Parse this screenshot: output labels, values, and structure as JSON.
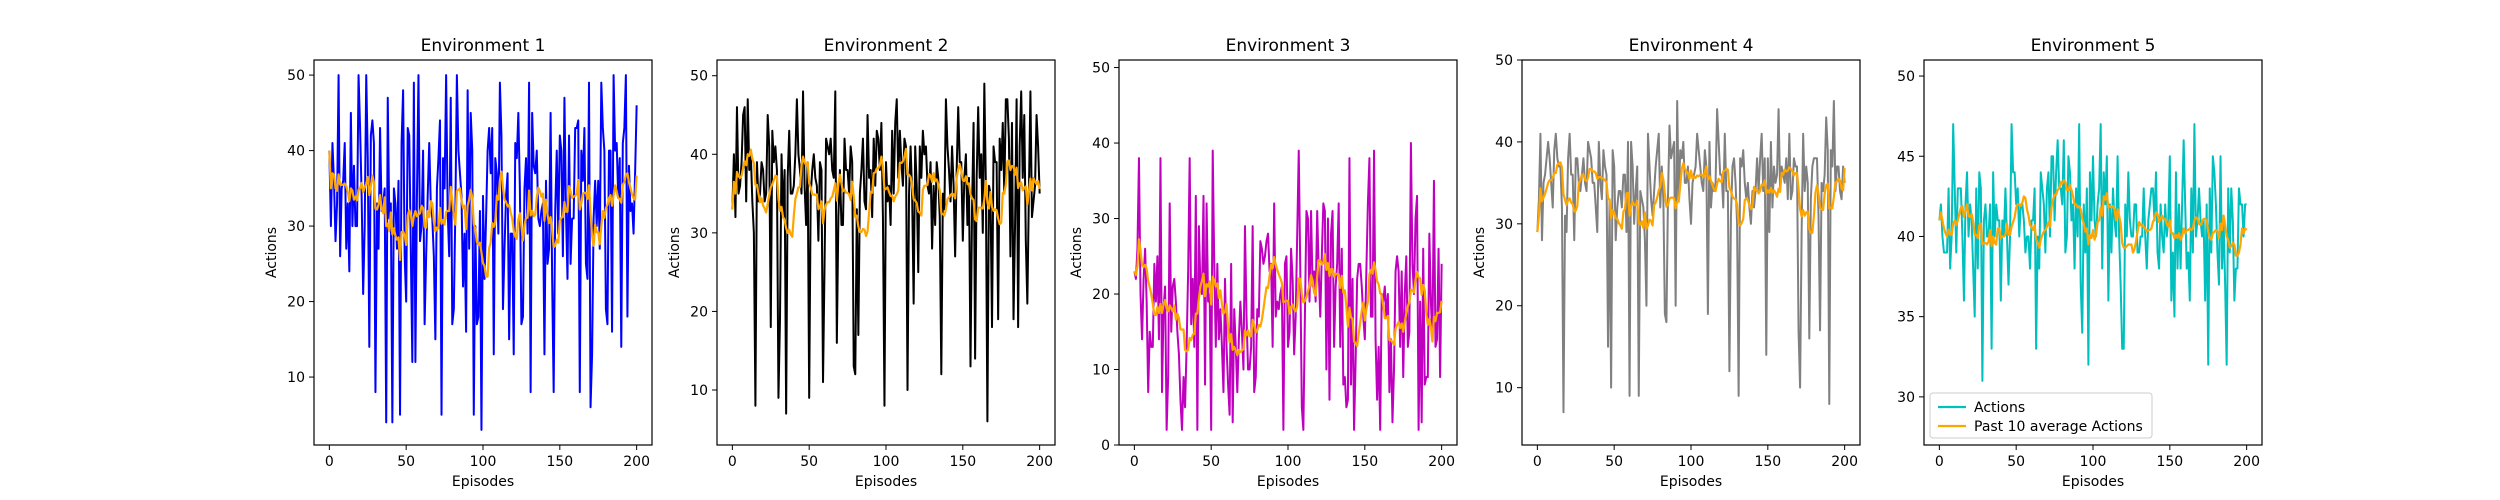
{
  "chart_data": [
    {
      "type": "line",
      "title": "Environment 1",
      "xlabel": "Episodes",
      "ylabel": "Actions",
      "xlim": [
        -10,
        210
      ],
      "ylim": [
        1,
        52
      ],
      "xticks": [
        0,
        50,
        100,
        150,
        200
      ],
      "yticks": [
        10,
        20,
        30,
        40,
        50
      ],
      "grid": false,
      "series": [
        {
          "key": "actions",
          "color": "#0000ff",
          "seed": 11,
          "low": 3,
          "high": 50,
          "mean": 36,
          "spread": 14,
          "drops": 0.12
        },
        {
          "key": "avg10",
          "color": "#ffa500"
        }
      ]
    },
    {
      "type": "line",
      "title": "Environment 2",
      "xlabel": "Episodes",
      "ylabel": "Actions",
      "xlim": [
        -10,
        210
      ],
      "ylim": [
        3,
        52
      ],
      "xticks": [
        0,
        50,
        100,
        150,
        200
      ],
      "yticks": [
        10,
        20,
        30,
        40,
        50
      ],
      "grid": false,
      "series": [
        {
          "key": "actions",
          "color": "#000000",
          "seed": 23,
          "low": 5,
          "high": 50,
          "mean": 38,
          "spread": 8,
          "drops": 0.08
        },
        {
          "key": "avg10",
          "color": "#ffa500"
        }
      ]
    },
    {
      "type": "line",
      "title": "Environment 3",
      "xlabel": "Episodes",
      "ylabel": "Actions",
      "xlim": [
        -10,
        210
      ],
      "ylim": [
        0,
        51
      ],
      "xticks": [
        0,
        50,
        100,
        150,
        200
      ],
      "yticks": [
        0,
        10,
        20,
        30,
        40,
        50
      ],
      "grid": false,
      "series": [
        {
          "key": "actions",
          "color": "#bf00bf",
          "seed": 37,
          "low": 2,
          "high": 49,
          "mean": 18,
          "spread": 16,
          "drops": 0.05
        },
        {
          "key": "avg10",
          "color": "#ffa500"
        }
      ]
    },
    {
      "type": "line",
      "title": "Environment 4",
      "xlabel": "Episodes",
      "ylabel": "Actions",
      "xlim": [
        -10,
        210
      ],
      "ylim": [
        3,
        50
      ],
      "xticks": [
        0,
        50,
        100,
        150,
        200
      ],
      "yticks": [
        10,
        20,
        30,
        40,
        50
      ],
      "grid": false,
      "series": [
        {
          "key": "actions",
          "color": "#808080",
          "seed": 51,
          "low": 6,
          "high": 45,
          "mean": 36,
          "spread": 6,
          "drops": 0.08
        },
        {
          "key": "avg10",
          "color": "#ffa500"
        }
      ]
    },
    {
      "type": "line",
      "title": "Environment 5",
      "xlabel": "Episodes",
      "ylabel": "",
      "xlim": [
        -10,
        210
      ],
      "ylim": [
        27,
        51
      ],
      "xticks": [
        0,
        50,
        100,
        150,
        200
      ],
      "yticks": [
        30,
        35,
        40,
        45,
        50
      ],
      "grid": false,
      "legend": "lower-left",
      "series": [
        {
          "key": "actions",
          "name": "Actions",
          "color": "#00bfbf",
          "seed": 67,
          "low": 30,
          "high": 50,
          "mean": 41.5,
          "spread": 4,
          "drops": 0.05
        },
        {
          "key": "avg10",
          "name": "Past 10 average Actions",
          "color": "#ffa500"
        }
      ]
    }
  ]
}
